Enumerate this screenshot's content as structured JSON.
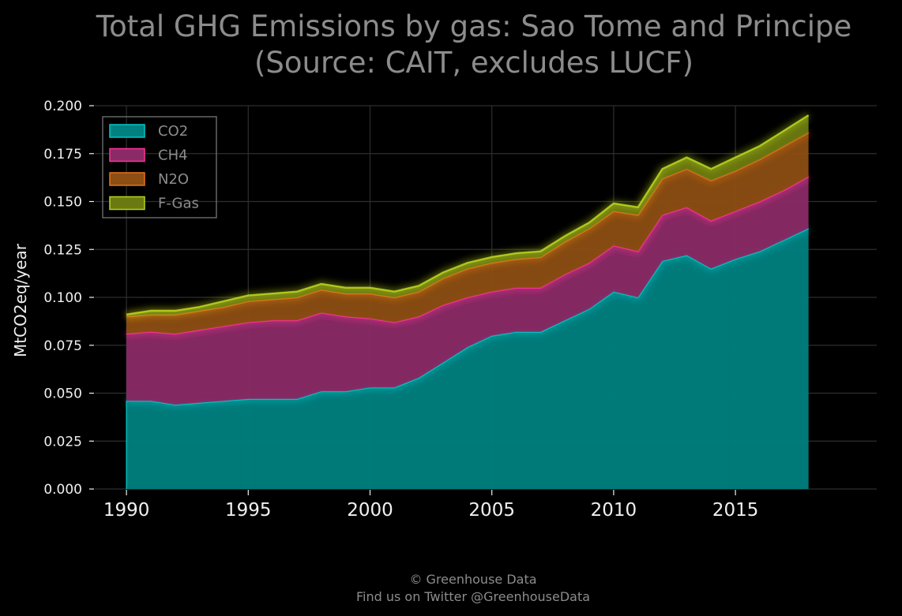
{
  "chart_data": {
    "type": "area",
    "stacked": true,
    "title": "Total GHG Emissions by gas: Sao Tome and Principe",
    "subtitle": "(Source: CAIT, excludes LUCF)",
    "xlabel": "",
    "ylabel": "MtCO2eq/year",
    "xlim": [
      1988.7,
      2020.8
    ],
    "ylim": [
      0,
      0.2
    ],
    "x_ticks": [
      1990,
      1995,
      2000,
      2005,
      2010,
      2015
    ],
    "y_ticks": [
      "0.000",
      "0.025",
      "0.050",
      "0.075",
      "0.100",
      "0.125",
      "0.150",
      "0.175",
      "0.200"
    ],
    "grid": true,
    "legend_position": "top-left",
    "x": [
      1990,
      1991,
      1992,
      1993,
      1994,
      1995,
      1996,
      1997,
      1998,
      1999,
      2000,
      2001,
      2002,
      2003,
      2004,
      2005,
      2006,
      2007,
      2008,
      2009,
      2010,
      2011,
      2012,
      2013,
      2014,
      2015,
      2016,
      2017,
      2018
    ],
    "series": [
      {
        "name": "CO2",
        "color": "#008080",
        "edge": "#00c8c8",
        "values": [
          0.046,
          0.046,
          0.044,
          0.045,
          0.046,
          0.047,
          0.047,
          0.047,
          0.051,
          0.051,
          0.053,
          0.053,
          0.058,
          0.066,
          0.074,
          0.08,
          0.082,
          0.082,
          0.088,
          0.094,
          0.103,
          0.1,
          0.119,
          0.122,
          0.115,
          0.12,
          0.124,
          0.13,
          0.136
        ]
      },
      {
        "name": "CH4",
        "color": "#8a2a66",
        "edge": "#ff3399",
        "values": [
          0.035,
          0.036,
          0.037,
          0.038,
          0.039,
          0.04,
          0.041,
          0.041,
          0.041,
          0.039,
          0.036,
          0.034,
          0.032,
          0.03,
          0.026,
          0.023,
          0.023,
          0.023,
          0.024,
          0.024,
          0.024,
          0.024,
          0.024,
          0.025,
          0.025,
          0.025,
          0.026,
          0.026,
          0.027
        ]
      },
      {
        "name": "N2O",
        "color": "#8c4e12",
        "edge": "#e67319",
        "values": [
          0.009,
          0.009,
          0.01,
          0.01,
          0.01,
          0.011,
          0.011,
          0.012,
          0.012,
          0.012,
          0.013,
          0.013,
          0.013,
          0.014,
          0.015,
          0.015,
          0.015,
          0.016,
          0.017,
          0.018,
          0.018,
          0.019,
          0.019,
          0.02,
          0.021,
          0.021,
          0.022,
          0.023,
          0.023
        ]
      },
      {
        "name": "F-Gas",
        "color": "#6b7a10",
        "edge": "#b8d21e",
        "values": [
          0.001,
          0.002,
          0.002,
          0.002,
          0.003,
          0.003,
          0.003,
          0.003,
          0.003,
          0.003,
          0.003,
          0.003,
          0.003,
          0.003,
          0.003,
          0.003,
          0.003,
          0.003,
          0.003,
          0.003,
          0.004,
          0.004,
          0.005,
          0.006,
          0.006,
          0.007,
          0.007,
          0.008,
          0.009
        ]
      }
    ]
  },
  "footer": {
    "line1": "© Greenhouse Data",
    "line2": "Find us on Twitter @GreenhouseData"
  },
  "colors": {
    "background": "#000000",
    "grid": "#2e2e2e",
    "title": "#8c8c8c",
    "tick": "#f0f0f0",
    "legend_border": "#666666"
  }
}
